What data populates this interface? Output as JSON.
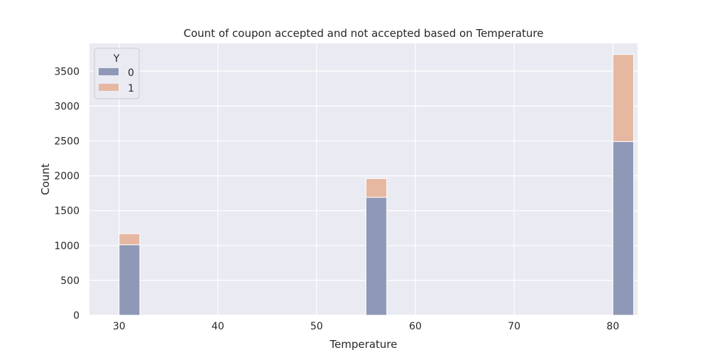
{
  "chart_data": {
    "type": "bar",
    "title": "Count of coupon accepted and not accepted based on Temperature",
    "xlabel": "Temperature",
    "ylabel": "Count",
    "xlim": [
      27,
      82.5
    ],
    "ylim": [
      0,
      3900
    ],
    "x_ticks": [
      30,
      40,
      50,
      60,
      70,
      80
    ],
    "y_ticks": [
      0,
      500,
      1000,
      1500,
      2000,
      2500,
      3000,
      3500
    ],
    "bin_width": 2.1,
    "categories": [
      30,
      55,
      80
    ],
    "series": [
      {
        "name": "0",
        "values": [
          1010,
          1690,
          2490
        ],
        "color": "#8f98b6"
      },
      {
        "name": "1",
        "values": [
          1170,
          1960,
          3740
        ],
        "color": "#e6b8a2"
      }
    ],
    "legend": {
      "title": "Y",
      "placement": "top-left"
    },
    "grid": true,
    "background": "#eaeaf2"
  }
}
